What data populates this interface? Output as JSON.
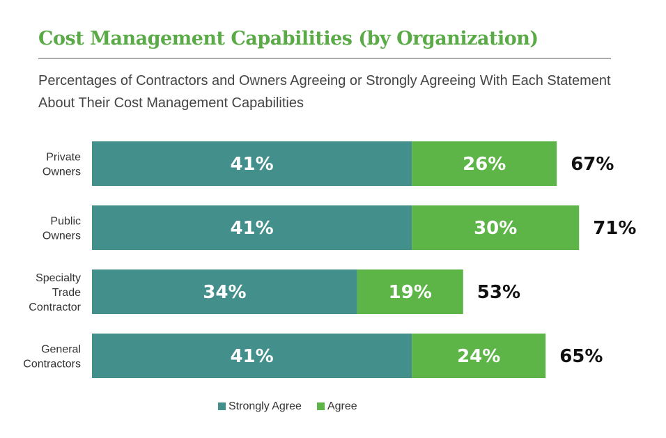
{
  "chart_data": {
    "type": "bar",
    "orientation": "horizontal",
    "stacked": true,
    "title": "Cost Management Capabilities (by Organization)",
    "subtitle": "Percentages of Contractors and Owners Agreeing or Strongly Agreeing With Each Statement About Their Cost Management Capabilities",
    "categories": [
      [
        "Private",
        "Owners"
      ],
      [
        "Public",
        "Owners"
      ],
      [
        "Specialty",
        "Trade",
        "Contractor"
      ],
      [
        "General",
        "Contractors"
      ]
    ],
    "series": [
      {
        "name": "Strongly Agree",
        "color": "#428f8c",
        "values": [
          41,
          41,
          34,
          41
        ]
      },
      {
        "name": "Agree",
        "color": "#5db548",
        "values": [
          26,
          30,
          19,
          24
        ]
      }
    ],
    "totals": [
      67,
      71,
      53,
      65
    ],
    "unit": "%",
    "legend": "bottom",
    "grid": false
  }
}
